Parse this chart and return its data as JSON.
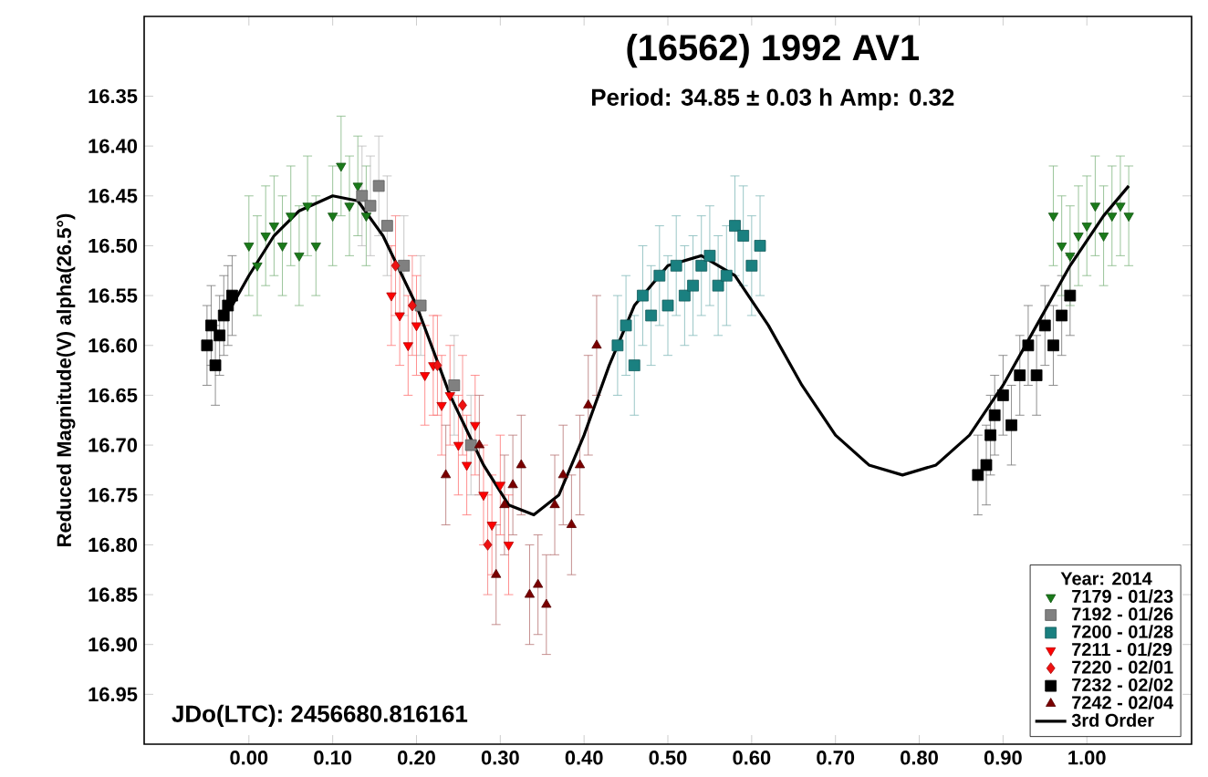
{
  "chart_data": {
    "type": "scatter",
    "title": "(16562) 1992 AV1",
    "subtitle": "Period: 34.85 ± 0.03 h   Amp: 0.32",
    "ylabel": "Reduced Magnitude(V) alpha(26.5°)",
    "legend_title": "Year: 2014",
    "legend": "bottom right",
    "annotations": [
      "JDo(LTC): 2456680.816161"
    ],
    "xlim": [
      -0.125,
      1.125
    ],
    "ylim": [
      17.0,
      16.27
    ],
    "xticks": [
      {
        "value": 0,
        "label": "0.00"
      },
      {
        "value": 0.1,
        "label": "0.10"
      },
      {
        "value": 0.2,
        "label": "0.20"
      },
      {
        "value": 0.3,
        "label": "0.30"
      },
      {
        "value": 0.4,
        "label": "0.40"
      },
      {
        "value": 0.5,
        "label": "0.50"
      },
      {
        "value": 0.6,
        "label": "0.60"
      },
      {
        "value": 0.7,
        "label": "0.70"
      },
      {
        "value": 0.8,
        "label": "0.80"
      },
      {
        "value": 0.9,
        "label": "0.90"
      },
      {
        "value": 1.0,
        "label": "1.00"
      }
    ],
    "yticks": [
      16.35,
      {
        "value": 16.4,
        "label": "16.40"
      },
      16.45,
      {
        "value": 16.5,
        "label": "16.50"
      },
      16.55,
      {
        "value": 16.6,
        "label": "16.60"
      },
      16.65,
      {
        "value": 16.7,
        "label": "16.70"
      },
      16.75,
      {
        "value": 16.8,
        "label": "16.80"
      },
      16.85,
      {
        "value": 16.9,
        "label": "16.90"
      },
      16.95
    ],
    "series": [
      {
        "name": "7179 - 01/23",
        "color": "#1a7a1a",
        "marker": "triangle-down",
        "x": [
          0.0,
          0.01,
          0.02,
          0.03,
          0.04,
          0.05,
          0.06,
          0.07,
          0.08,
          0.1,
          0.11,
          0.12,
          0.13,
          0.14,
          0.96,
          0.97,
          0.98,
          0.99,
          1.0,
          1.01,
          1.02,
          1.03,
          1.04,
          1.05
        ],
        "values": [
          16.5,
          16.52,
          16.49,
          16.48,
          16.5,
          16.47,
          16.51,
          16.46,
          16.5,
          16.47,
          16.42,
          16.46,
          16.44,
          16.47,
          16.47,
          16.5,
          16.51,
          16.49,
          16.48,
          16.46,
          16.49,
          16.47,
          16.46,
          16.47
        ],
        "errors": [
          0.05,
          0.05,
          0.05,
          0.05,
          0.05,
          0.05,
          0.05,
          0.05,
          0.05,
          0.05,
          0.05,
          0.05,
          0.05,
          0.05,
          0.05,
          0.05,
          0.05,
          0.05,
          0.05,
          0.05,
          0.05,
          0.05,
          0.05,
          0.05
        ]
      },
      {
        "name": "7192 - 01/26",
        "color": "#808080",
        "marker": "square",
        "x": [
          0.135,
          0.145,
          0.155,
          0.165,
          0.185,
          0.205,
          0.245,
          0.265
        ],
        "values": [
          16.45,
          16.46,
          16.44,
          16.48,
          16.52,
          16.56,
          16.64,
          16.7
        ],
        "errors": [
          0.05,
          0.05,
          0.05,
          0.05,
          0.05,
          0.05,
          0.05,
          0.05
        ]
      },
      {
        "name": "7200 - 01/28",
        "color": "#1a8080",
        "marker": "square",
        "x": [
          0.44,
          0.45,
          0.46,
          0.47,
          0.48,
          0.49,
          0.5,
          0.51,
          0.52,
          0.53,
          0.54,
          0.55,
          0.56,
          0.57,
          0.58,
          0.59,
          0.6,
          0.61
        ],
        "values": [
          16.6,
          16.58,
          16.62,
          16.55,
          16.57,
          16.53,
          16.56,
          16.52,
          16.55,
          16.54,
          16.52,
          16.51,
          16.54,
          16.53,
          16.48,
          16.49,
          16.52,
          16.5
        ],
        "errors": [
          0.05,
          0.05,
          0.05,
          0.05,
          0.05,
          0.05,
          0.05,
          0.05,
          0.05,
          0.05,
          0.05,
          0.05,
          0.05,
          0.05,
          0.05,
          0.05,
          0.05,
          0.05
        ]
      },
      {
        "name": "7211 - 01/29",
        "color": "#ff0000",
        "marker": "triangle-down",
        "x": [
          0.17,
          0.18,
          0.19,
          0.2,
          0.21,
          0.22,
          0.23,
          0.24,
          0.25,
          0.26,
          0.27,
          0.28,
          0.29,
          0.3,
          0.31
        ],
        "values": [
          16.55,
          16.57,
          16.6,
          16.58,
          16.63,
          16.62,
          16.66,
          16.65,
          16.7,
          16.72,
          16.68,
          16.75,
          16.78,
          16.74,
          16.8
        ],
        "errors": [
          0.05,
          0.05,
          0.05,
          0.05,
          0.05,
          0.05,
          0.05,
          0.05,
          0.05,
          0.05,
          0.05,
          0.05,
          0.05,
          0.05,
          0.05
        ]
      },
      {
        "name": "7220 - 02/01",
        "color": "#ee1111",
        "marker": "diamond",
        "x": [
          0.175,
          0.195,
          0.225,
          0.255,
          0.285
        ],
        "values": [
          16.52,
          16.56,
          16.62,
          16.66,
          16.8
        ],
        "errors": [
          0.05,
          0.05,
          0.05,
          0.05,
          0.05
        ]
      },
      {
        "name": "7232 - 02/02",
        "color": "#000000",
        "marker": "square",
        "x": [
          -0.05,
          -0.045,
          -0.04,
          -0.035,
          -0.03,
          -0.025,
          -0.02,
          0.87,
          0.88,
          0.885,
          0.89,
          0.9,
          0.91,
          0.92,
          0.93,
          0.94,
          0.95,
          0.96,
          0.97,
          0.98
        ],
        "values": [
          16.6,
          16.58,
          16.62,
          16.59,
          16.57,
          16.56,
          16.55,
          16.73,
          16.72,
          16.69,
          16.67,
          16.65,
          16.68,
          16.63,
          16.6,
          16.63,
          16.58,
          16.6,
          16.57,
          16.55
        ],
        "errors": [
          0.04,
          0.04,
          0.04,
          0.04,
          0.04,
          0.04,
          0.04,
          0.04,
          0.04,
          0.04,
          0.04,
          0.04,
          0.04,
          0.04,
          0.04,
          0.04,
          0.04,
          0.04,
          0.04,
          0.04
        ]
      },
      {
        "name": "7242 - 02/04",
        "color": "#7a0000",
        "marker": "triangle",
        "x": [
          0.235,
          0.275,
          0.295,
          0.305,
          0.315,
          0.325,
          0.335,
          0.345,
          0.355,
          0.365,
          0.375,
          0.385,
          0.395,
          0.405,
          0.415
        ],
        "values": [
          16.73,
          16.7,
          16.83,
          16.76,
          16.74,
          16.72,
          16.85,
          16.84,
          16.86,
          16.76,
          16.73,
          16.78,
          16.72,
          16.66,
          16.6
        ],
        "errors": [
          0.05,
          0.05,
          0.05,
          0.05,
          0.05,
          0.05,
          0.05,
          0.05,
          0.05,
          0.05,
          0.05,
          0.05,
          0.05,
          0.05,
          0.05
        ]
      },
      {
        "name": "3rd Order",
        "type": "line",
        "color": "#000000",
        "marker": "none",
        "line_style": "solid",
        "x": [
          -0.02,
          0.0,
          0.03,
          0.06,
          0.1,
          0.13,
          0.16,
          0.2,
          0.24,
          0.28,
          0.31,
          0.34,
          0.37,
          0.4,
          0.43,
          0.46,
          0.5,
          0.54,
          0.58,
          0.62,
          0.66,
          0.7,
          0.74,
          0.78,
          0.82,
          0.86,
          0.9,
          0.94,
          0.98,
          1.02,
          1.05
        ],
        "values": [
          16.56,
          16.53,
          16.49,
          16.465,
          16.45,
          16.455,
          16.49,
          16.56,
          16.65,
          16.72,
          16.76,
          16.77,
          16.75,
          16.69,
          16.62,
          16.56,
          16.52,
          16.51,
          16.53,
          16.58,
          16.64,
          16.69,
          16.72,
          16.73,
          16.72,
          16.69,
          16.64,
          16.58,
          16.52,
          16.47,
          16.44
        ]
      }
    ]
  }
}
